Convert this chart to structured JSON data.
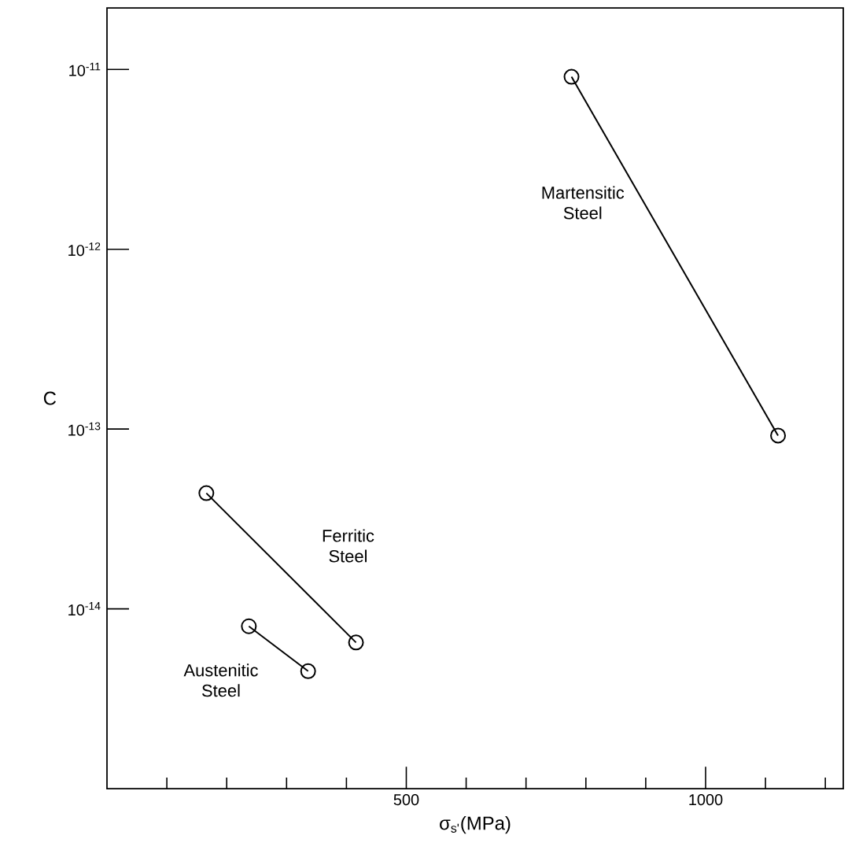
{
  "chart_data": {
    "type": "line",
    "xlabel": "σ$_{s'}$(MPa)",
    "ylabel": "C",
    "log": "y",
    "marker": "circle",
    "line_style": "solid",
    "xlim": [
      0,
      1230
    ],
    "ylim": [
      1e-15,
      2.2e-11
    ],
    "xticks": [
      {
        "value": 100,
        "label": null
      },
      {
        "value": 200,
        "label": null
      },
      {
        "value": 300,
        "label": null
      },
      {
        "value": 400,
        "label": null
      },
      500,
      {
        "value": 600,
        "label": null
      },
      {
        "value": 700,
        "label": null
      },
      {
        "value": 800,
        "label": null
      },
      {
        "value": 900,
        "label": null
      },
      1000,
      {
        "value": 1100,
        "label": null
      },
      {
        "value": 1200,
        "label": null
      }
    ],
    "yticks": [
      {
        "value": 1e-14,
        "label": "10$^{-14}$"
      },
      {
        "value": 1e-13,
        "label": "10$^{-13}$"
      },
      {
        "value": 1e-12,
        "label": "10$^{-12}$"
      },
      {
        "value": 1e-11,
        "label": "10$^{-11}$"
      }
    ],
    "series": [
      {
        "name": "Martensitic Steel",
        "color": "#000000",
        "x": [
          776,
          1121
        ],
        "values": [
          9.1e-12,
          9.2e-14
        ]
      },
      {
        "name": "Ferritic Steel",
        "color": "#000000",
        "x": [
          166,
          416
        ],
        "values": [
          4.4e-14,
          6.5e-15
        ]
      },
      {
        "name": "Austenitic Steel",
        "color": "#000000",
        "x": [
          237,
          336
        ],
        "values": [
          8e-15,
          4.5e-15
        ]
      }
    ]
  }
}
